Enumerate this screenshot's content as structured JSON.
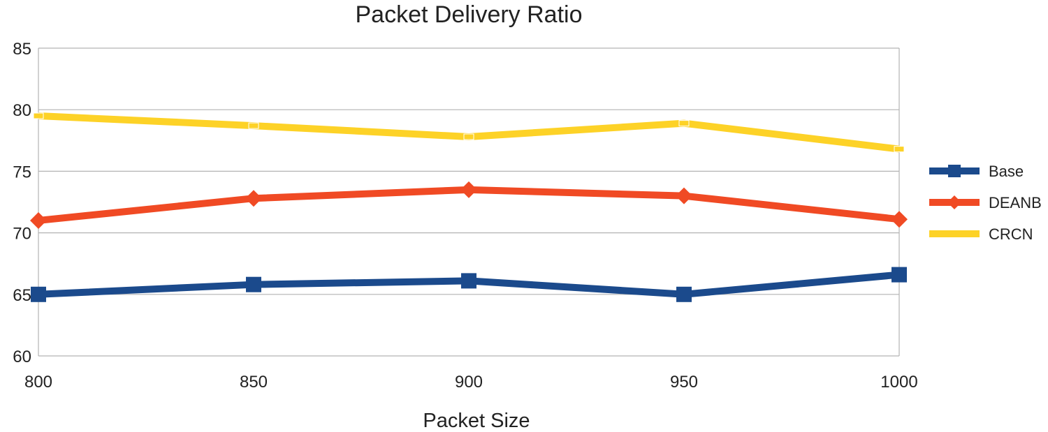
{
  "chart_data": {
    "type": "line",
    "title": "Packet Delivery Ratio",
    "xlabel": "Packet Size",
    "ylabel": "",
    "x": [
      800,
      850,
      900,
      950,
      1000
    ],
    "x_tick_labels": [
      "800",
      "850",
      "900",
      "950",
      "1000"
    ],
    "ylim": [
      60,
      85
    ],
    "y_ticks": [
      60,
      65,
      70,
      75,
      80,
      85
    ],
    "y_tick_labels": [
      "60",
      "65",
      "70",
      "75",
      "80",
      "85"
    ],
    "grid": "horizontal",
    "legend_position": "right",
    "series": [
      {
        "name": "Base",
        "values": [
          65.0,
          65.8,
          66.1,
          65.0,
          66.6
        ],
        "color": "#1b4a8c",
        "marker": "square"
      },
      {
        "name": "DEANB",
        "values": [
          71.0,
          72.8,
          73.5,
          73.0,
          71.1
        ],
        "color": "#f04a24",
        "marker": "diamond"
      },
      {
        "name": "CRCN",
        "values": [
          79.5,
          78.7,
          77.8,
          78.9,
          76.8
        ],
        "color": "#fdd227",
        "marker": "none"
      }
    ]
  }
}
